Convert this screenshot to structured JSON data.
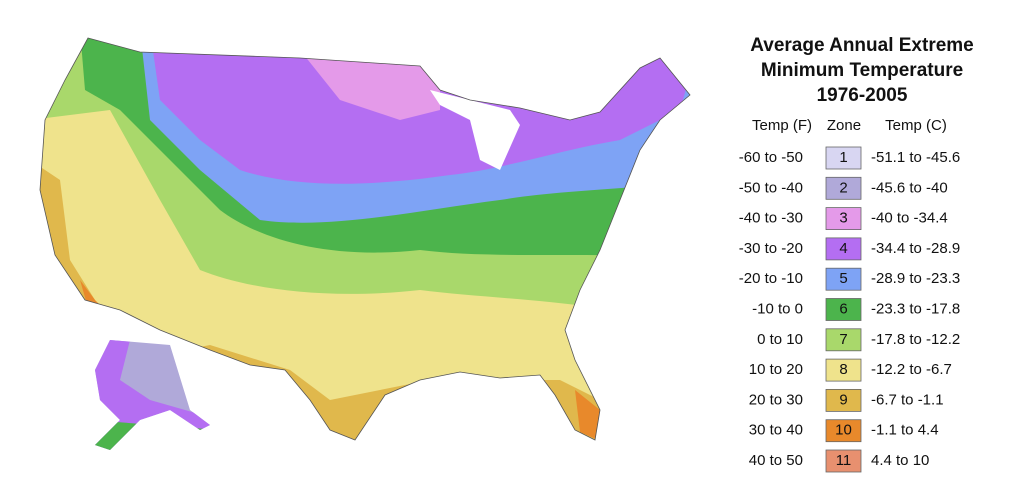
{
  "legend": {
    "title": [
      "Average Annual Extreme",
      "Minimum Temperature",
      "1976-2005"
    ],
    "headers": [
      "Temp (F)",
      "Zone",
      "Temp (C)"
    ],
    "rows": [
      {
        "temp_f": "-60 to -50",
        "zone": "1",
        "temp_c": "-51.1 to -45.6",
        "color": "#d8d6f2"
      },
      {
        "temp_f": "-50 to -40",
        "zone": "2",
        "temp_c": "-45.6 to -40",
        "color": "#b0a9d9"
      },
      {
        "temp_f": "-40 to -30",
        "zone": "3",
        "temp_c": "-40 to -34.4",
        "color": "#e49ae9"
      },
      {
        "temp_f": "-30 to -20",
        "zone": "4",
        "temp_c": "-34.4 to -28.9",
        "color": "#b46ef2"
      },
      {
        "temp_f": "-20 to -10",
        "zone": "5",
        "temp_c": "-28.9 to -23.3",
        "color": "#7ea3f5"
      },
      {
        "temp_f": "-10 to 0",
        "zone": "6",
        "temp_c": "-23.3 to -17.8",
        "color": "#4cb44c"
      },
      {
        "temp_f": "0 to 10",
        "zone": "7",
        "temp_c": "-17.8 to -12.2",
        "color": "#a9d86b"
      },
      {
        "temp_f": "10 to 20",
        "zone": "8",
        "temp_c": "-12.2 to -6.7",
        "color": "#efe38c"
      },
      {
        "temp_f": "20 to 30",
        "zone": "9",
        "temp_c": "-6.7 to -1.1",
        "color": "#e0b84c"
      },
      {
        "temp_f": "30 to 40",
        "zone": "10",
        "temp_c": "-1.1 to 4.4",
        "color": "#e8892b"
      },
      {
        "temp_f": "40 to 50",
        "zone": "11",
        "temp_c": "4.4 to 10",
        "color": "#e8906f"
      }
    ]
  }
}
